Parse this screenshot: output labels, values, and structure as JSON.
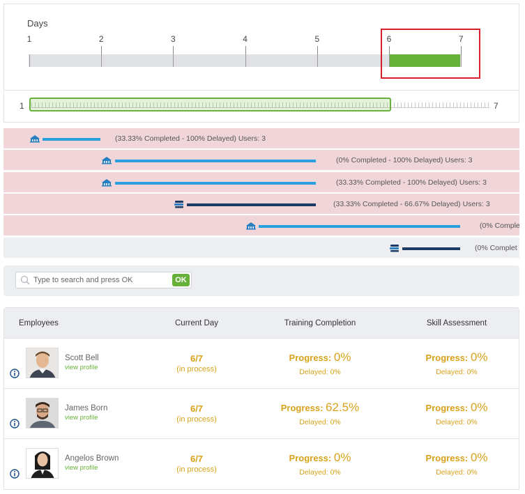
{
  "timeline": {
    "title": "Days",
    "ticks": [
      "1",
      "2",
      "3",
      "4",
      "5",
      "6",
      "7"
    ],
    "current_fill": {
      "from_day": 6,
      "to_day": 7
    },
    "accent_color": "#67b13a",
    "highlight_color": "#d81e2a"
  },
  "range": {
    "min_label": "1",
    "max_label": "7",
    "selected_fraction": 0.79
  },
  "gantt": {
    "rows": [
      {
        "icon": "classroom-icon",
        "status": "delayed",
        "label": "(33.33% Completed - 100% Delayed) Users: 3",
        "bar_color": "#2a9fe0"
      },
      {
        "icon": "classroom-icon",
        "status": "delayed",
        "label": "(0% Completed - 100% Delayed) Users: 3",
        "bar_color": "#2a9fe0"
      },
      {
        "icon": "classroom-icon",
        "status": "delayed",
        "label": "(33.33% Completed - 100% Delayed) Users: 3",
        "bar_color": "#2a9fe0"
      },
      {
        "icon": "books-icon",
        "status": "delayed",
        "label": "(33.33% Completed - 66.67% Delayed) Users: 3",
        "bar_color": "#1b3a66"
      },
      {
        "icon": "classroom-icon",
        "status": "delayed",
        "label": "(0% Comple",
        "bar_color": "#2a9fe0"
      },
      {
        "icon": "books-icon",
        "status": "normal",
        "label": "(0% Complet",
        "bar_color": "#1b3a66"
      }
    ]
  },
  "search": {
    "placeholder": "Type to search and press OK",
    "value": "",
    "button_label": "OK"
  },
  "table": {
    "headers": {
      "employees": "Employees",
      "current_day": "Current Day",
      "training": "Training Completion",
      "skill": "Skill Assessment"
    },
    "rows": [
      {
        "name": "Scott Bell",
        "link": "view profile",
        "day": "6/7",
        "day_status": "(in process)",
        "training_prefix": "Progress: ",
        "training_pct": "0%",
        "training_delayed": "Delayed: 0%",
        "skill_prefix": "Progress: ",
        "skill_pct": "0%",
        "skill_delayed": "Delayed: 0%"
      },
      {
        "name": "James Born",
        "link": "view profile",
        "day": "6/7",
        "day_status": "(in process)",
        "training_prefix": "Progress: ",
        "training_pct": "62.5%",
        "training_delayed": "Delayed: 0%",
        "skill_prefix": "Progress: ",
        "skill_pct": "0%",
        "skill_delayed": "Delayed: 0%"
      },
      {
        "name": "Angelos Brown",
        "link": "view profile",
        "day": "6/7",
        "day_status": "(in process)",
        "training_prefix": "Progress: ",
        "training_pct": "0%",
        "training_delayed": "Delayed: 0%",
        "skill_prefix": "Progress: ",
        "skill_pct": "0%",
        "skill_delayed": "Delayed: 0%"
      }
    ],
    "value_color": "#d9a21b"
  }
}
